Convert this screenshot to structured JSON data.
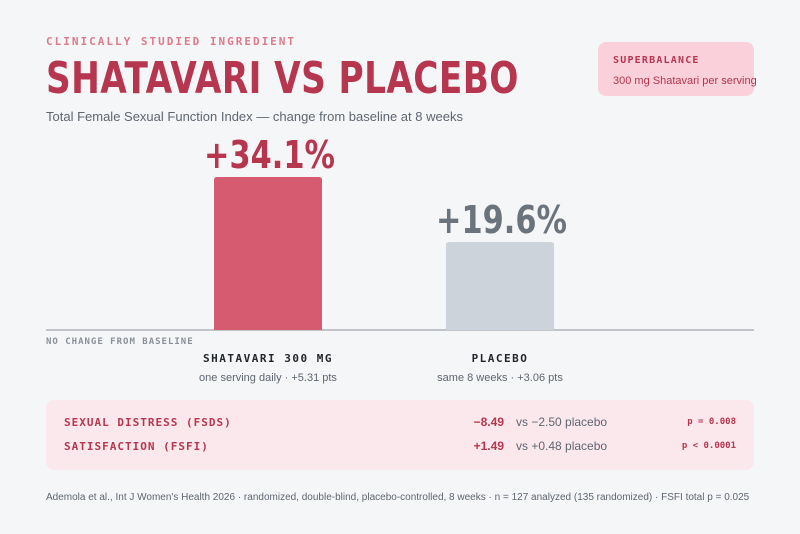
{
  "header": {
    "eyebrow": "CLINICALLY STUDIED INGREDIENT",
    "title": "SHATAVARI VS PLACEBO",
    "subtitle": "Total Female Sexual Function Index — change from baseline at 8 weeks"
  },
  "badge": {
    "title": "SUPERBALANCE",
    "subtitle": "300 mg Shatavari per serving"
  },
  "chart_data": {
    "type": "bar",
    "categories": [
      "SHATAVARI  300 MG",
      "PLACEBO"
    ],
    "values": [
      34.1,
      19.6
    ],
    "value_labels": [
      "+34.1%",
      "+19.6%"
    ],
    "category_subtitles": [
      "one serving daily  ·  +5.31 pts",
      "same 8 weeks  ·  +3.06 pts"
    ],
    "baseline_label": "NO CHANGE FROM BASELINE",
    "ylim": [
      0,
      34.1
    ],
    "grid": false,
    "colors": [
      "#d65b70",
      "#ccd3da"
    ],
    "label_colors": [
      "#b7364f",
      "#6b737c"
    ]
  },
  "stats": [
    {
      "label": "SEXUAL DISTRESS  (FSDS)",
      "value": "−8.49",
      "comparison": "vs −2.50 placebo",
      "p": "p = 0.008"
    },
    {
      "label": "SATISFACTION  (FSFI)",
      "value": "+1.49",
      "comparison": "vs +0.48 placebo",
      "p": "p < 0.0001"
    }
  ],
  "footer": "Ademola et al., Int J Women's Health 2026  ·  randomized, double-blind, placebo-controlled, 8 weeks  ·  n = 127 analyzed (135 randomized)  ·  FSFI total p = 0.025"
}
